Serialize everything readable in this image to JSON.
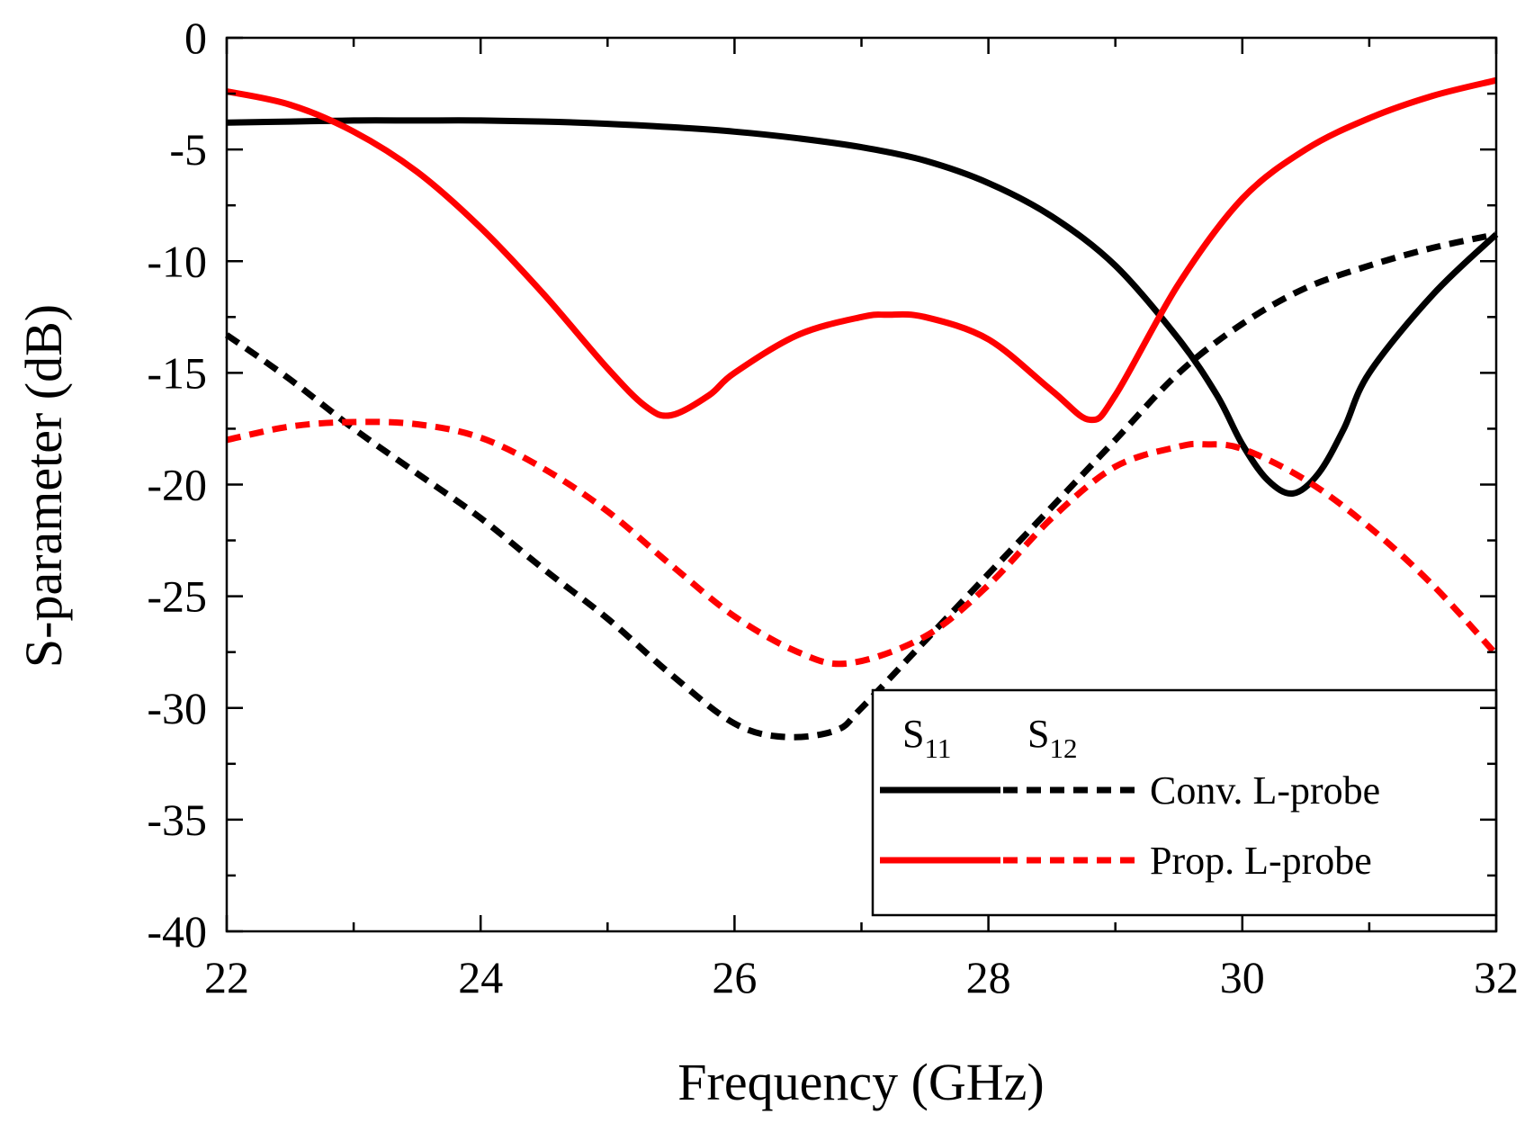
{
  "chart_data": {
    "type": "line",
    "xlabel": "Frequency (GHz)",
    "ylabel": "S-parameter (dB)",
    "xlim": [
      22,
      32
    ],
    "ylim": [
      -40,
      0
    ],
    "xticks": [
      22,
      24,
      26,
      28,
      30,
      32
    ],
    "yticks": [
      0,
      -5,
      -10,
      -15,
      -20,
      -25,
      -30,
      -35,
      -40
    ],
    "grid": false,
    "legend": {
      "position": "bottom-right",
      "col_header_1": "S",
      "col_header_1_sub": "11",
      "col_header_2": "S",
      "col_header_2_sub": "12",
      "rows": [
        {
          "label": "Conv. L-probe",
          "color": "#000000"
        },
        {
          "label": "Prop. L-probe",
          "color": "#ff0000"
        }
      ]
    },
    "series": [
      {
        "name": "Conv. L-probe S11",
        "color": "#000000",
        "dashed": false,
        "x": [
          22,
          22.5,
          23,
          23.5,
          24,
          24.5,
          25,
          25.5,
          26,
          26.5,
          27,
          27.5,
          28,
          28.5,
          29,
          29.5,
          29.8,
          30,
          30.2,
          30.4,
          30.6,
          30.8,
          31,
          31.5,
          32
        ],
        "y": [
          -3.8,
          -3.75,
          -3.7,
          -3.7,
          -3.7,
          -3.75,
          -3.85,
          -4.0,
          -4.2,
          -4.5,
          -4.9,
          -5.5,
          -6.5,
          -8.0,
          -10.2,
          -13.5,
          -16.0,
          -18.2,
          -19.8,
          -20.4,
          -19.5,
          -17.5,
          -15.0,
          -11.5,
          -8.8
        ]
      },
      {
        "name": "Conv. L-probe S12",
        "color": "#000000",
        "dashed": true,
        "x": [
          22,
          22.5,
          23,
          23.5,
          24,
          24.5,
          25,
          25.5,
          26,
          26.4,
          26.8,
          27,
          27.5,
          28,
          28.5,
          29,
          29.5,
          30,
          30.5,
          31,
          31.5,
          32
        ],
        "y": [
          -13.3,
          -15.3,
          -17.5,
          -19.5,
          -21.5,
          -23.8,
          -26.0,
          -28.5,
          -30.7,
          -31.3,
          -31.0,
          -30.0,
          -27.0,
          -24.0,
          -21.0,
          -18.0,
          -15.0,
          -12.8,
          -11.2,
          -10.2,
          -9.4,
          -8.8
        ]
      },
      {
        "name": "Prop. L-probe S11",
        "color": "#ff0000",
        "dashed": false,
        "x": [
          22,
          22.5,
          23,
          23.5,
          24,
          24.5,
          25,
          25.3,
          25.5,
          25.8,
          26,
          26.5,
          27,
          27.2,
          27.5,
          28,
          28.5,
          28.8,
          29,
          29.5,
          30,
          30.5,
          31,
          31.5,
          32
        ],
        "y": [
          -2.4,
          -3.0,
          -4.2,
          -6.0,
          -8.5,
          -11.5,
          -14.8,
          -16.5,
          -16.9,
          -16.0,
          -15.0,
          -13.3,
          -12.5,
          -12.4,
          -12.5,
          -13.5,
          -15.8,
          -17.1,
          -16.0,
          -11.0,
          -7.2,
          -5.0,
          -3.6,
          -2.6,
          -1.9
        ]
      },
      {
        "name": "Prop. L-probe S12",
        "color": "#ff0000",
        "dashed": true,
        "x": [
          22,
          22.5,
          23,
          23.5,
          24,
          24.5,
          25,
          25.5,
          26,
          26.5,
          26.9,
          27.5,
          28,
          28.5,
          29,
          29.5,
          29.7,
          30,
          30.5,
          31,
          31.5,
          32
        ],
        "y": [
          -18.0,
          -17.4,
          -17.2,
          -17.3,
          -17.9,
          -19.3,
          -21.2,
          -23.6,
          -25.9,
          -27.5,
          -28.0,
          -26.8,
          -24.5,
          -21.5,
          -19.2,
          -18.3,
          -18.2,
          -18.4,
          -19.8,
          -21.9,
          -24.5,
          -27.6
        ]
      }
    ]
  }
}
